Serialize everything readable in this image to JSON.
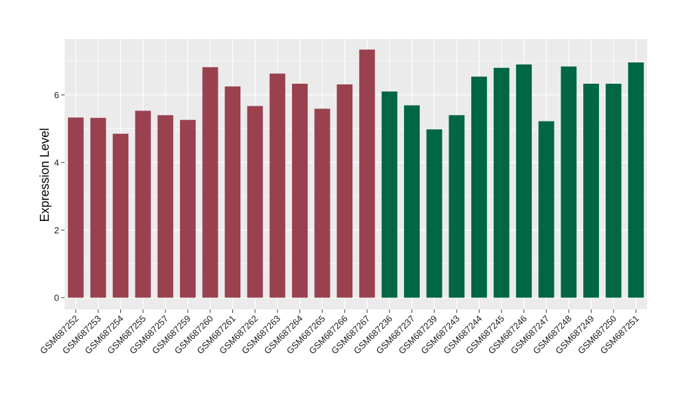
{
  "chart_data": {
    "type": "bar",
    "title": "",
    "xlabel": "",
    "ylabel": "Expression Level",
    "ylim": [
      -0.35,
      7.65
    ],
    "yticks": [
      0,
      2,
      4,
      6
    ],
    "grid": true,
    "legend": "none",
    "colors": {
      "group_a": "#9a4150",
      "group_b": "#006644",
      "panel": "#ebebeb",
      "grid": "#ffffff"
    },
    "categories": [
      "GSM687252",
      "GSM687253",
      "GSM687254",
      "GSM687255",
      "GSM687257",
      "GSM687259",
      "GSM687260",
      "GSM687261",
      "GSM687262",
      "GSM687263",
      "GSM687264",
      "GSM687265",
      "GSM687266",
      "GSM687267",
      "GSM687236",
      "GSM687237",
      "GSM687239",
      "GSM687243",
      "GSM687244",
      "GSM687245",
      "GSM687246",
      "GSM687247",
      "GSM687248",
      "GSM687249",
      "GSM687250",
      "GSM687251"
    ],
    "values": [
      5.33,
      5.32,
      4.85,
      5.53,
      5.4,
      5.26,
      6.82,
      6.25,
      5.67,
      6.63,
      6.33,
      5.59,
      6.31,
      7.34,
      6.1,
      5.69,
      4.98,
      5.4,
      6.54,
      6.8,
      6.9,
      5.22,
      6.84,
      6.33,
      6.33,
      6.96
    ],
    "groups": [
      "group_a",
      "group_a",
      "group_a",
      "group_a",
      "group_a",
      "group_a",
      "group_a",
      "group_a",
      "group_a",
      "group_a",
      "group_a",
      "group_a",
      "group_a",
      "group_a",
      "group_b",
      "group_b",
      "group_b",
      "group_b",
      "group_b",
      "group_b",
      "group_b",
      "group_b",
      "group_b",
      "group_b",
      "group_b",
      "group_b"
    ]
  }
}
